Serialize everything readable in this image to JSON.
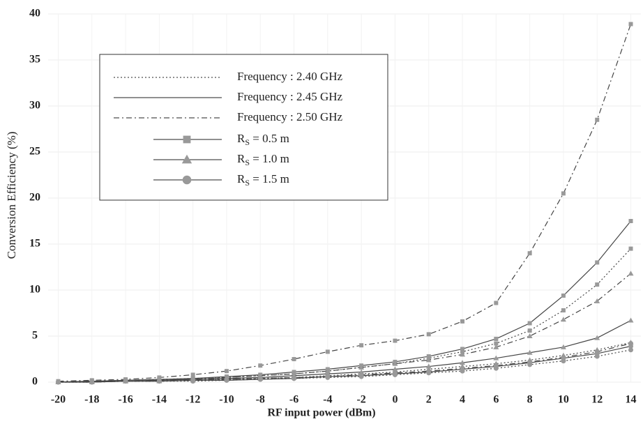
{
  "chart_data": {
    "type": "line",
    "xlabel": "RF input power (dBm)",
    "ylabel": "Conversion Efficiency (%)",
    "x": [
      -20,
      -18,
      -16,
      -14,
      -12,
      -10,
      -8,
      -6,
      -4,
      -2,
      0,
      2,
      4,
      6,
      8,
      10,
      12,
      14
    ],
    "xlim": [
      -20.6,
      14.6
    ],
    "xticks": [
      -20,
      -18,
      -16,
      -14,
      -12,
      -10,
      -8,
      -6,
      -4,
      -2,
      0,
      2,
      4,
      6,
      8,
      10,
      12,
      14
    ],
    "ylim": [
      0,
      40
    ],
    "yticks": [
      0,
      5,
      10,
      15,
      20,
      25,
      30,
      35,
      40
    ],
    "grid": true,
    "color": "#444444",
    "marker_color": "#999999",
    "legend": {
      "line_styles": [
        {
          "label": "Frequency : 2.40 GHz",
          "dash": "dotted"
        },
        {
          "label": "Frequency : 2.45 GHz",
          "dash": "solid"
        },
        {
          "label": "Frequency : 2.50 GHz",
          "dash": "dashdot"
        }
      ],
      "markers": [
        {
          "main": "R",
          "sub": "S",
          "rest": " = 0.5 m",
          "marker": "square"
        },
        {
          "main": "R",
          "sub": "S",
          "rest": " = 1.0 m",
          "marker": "triangle"
        },
        {
          "main": "R",
          "sub": "S",
          "rest": " = 1.5 m",
          "marker": "circle"
        }
      ]
    },
    "series": [
      {
        "dash": "dashdot",
        "marker": "square",
        "values": [
          0.1,
          0.2,
          0.3,
          0.5,
          0.8,
          1.2,
          1.8,
          2.5,
          3.3,
          4.0,
          4.5,
          5.2,
          6.6,
          8.6,
          14.0,
          20.5,
          28.5,
          38.9
        ]
      },
      {
        "dash": "solid",
        "marker": "square",
        "values": [
          0,
          0.1,
          0.2,
          0.3,
          0.4,
          0.6,
          0.8,
          1.1,
          1.4,
          1.8,
          2.2,
          2.8,
          3.6,
          4.7,
          6.4,
          9.4,
          13.0,
          17.5
        ]
      },
      {
        "dash": "dotted",
        "marker": "square",
        "values": [
          0,
          0.1,
          0.2,
          0.3,
          0.4,
          0.5,
          0.7,
          0.9,
          1.2,
          1.6,
          2.0,
          2.6,
          3.3,
          4.2,
          5.6,
          7.8,
          10.6,
          14.5
        ]
      },
      {
        "dash": "dashdot",
        "marker": "triangle",
        "values": [
          0,
          0.1,
          0.1,
          0.2,
          0.3,
          0.5,
          0.7,
          0.9,
          1.2,
          1.6,
          2.0,
          2.4,
          3.0,
          3.8,
          5.0,
          6.8,
          8.8,
          11.8
        ]
      },
      {
        "dash": "solid",
        "marker": "triangle",
        "values": [
          0,
          0.1,
          0.1,
          0.2,
          0.3,
          0.4,
          0.5,
          0.7,
          0.9,
          1.1,
          1.4,
          1.7,
          2.1,
          2.6,
          3.2,
          3.8,
          4.8,
          6.7
        ]
      },
      {
        "dash": "dotted",
        "marker": "triangle",
        "values": [
          0,
          0,
          0.1,
          0.1,
          0.2,
          0.3,
          0.4,
          0.5,
          0.7,
          0.9,
          1.1,
          1.4,
          1.7,
          2.0,
          2.4,
          2.9,
          3.5,
          4.3
        ]
      },
      {
        "dash": "dashdot",
        "marker": "circle",
        "values": [
          0,
          0,
          0.1,
          0.1,
          0.2,
          0.3,
          0.4,
          0.5,
          0.6,
          0.8,
          1.0,
          1.2,
          1.5,
          1.8,
          2.2,
          2.7,
          3.3,
          4.2
        ]
      },
      {
        "dash": "solid",
        "marker": "circle",
        "values": [
          0,
          0,
          0.1,
          0.1,
          0.2,
          0.2,
          0.3,
          0.4,
          0.6,
          0.7,
          0.9,
          1.1,
          1.4,
          1.7,
          2.1,
          2.6,
          3.1,
          3.9
        ]
      },
      {
        "dash": "dotted",
        "marker": "circle",
        "values": [
          0,
          0,
          0.1,
          0.1,
          0.1,
          0.2,
          0.3,
          0.4,
          0.5,
          0.6,
          0.8,
          1.0,
          1.2,
          1.5,
          1.9,
          2.3,
          2.8,
          3.5
        ]
      }
    ]
  }
}
